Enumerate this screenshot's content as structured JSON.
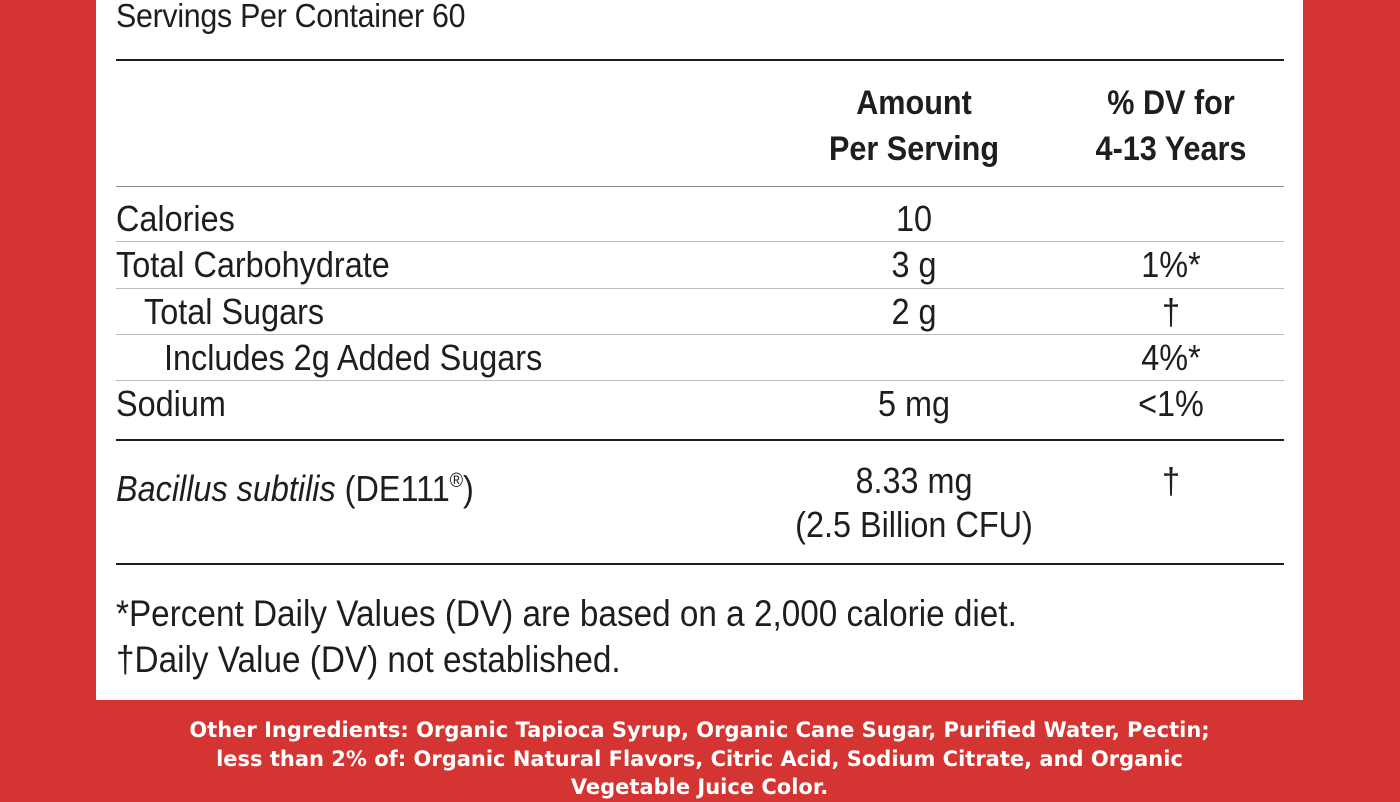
{
  "colors": {
    "background_red": "#d43532",
    "panel_white": "#ffffff",
    "text": "#1e1e1e"
  },
  "servings": "Servings Per Container 60",
  "header": {
    "amount_line1": "Amount",
    "amount_line2": "Per Serving",
    "dv_line1": "% DV for",
    "dv_line2": "4-13 Years"
  },
  "rows": [
    {
      "label": "Calories",
      "amount": "10",
      "dv": ""
    },
    {
      "label": "Total Carbohydrate",
      "amount": "3 g",
      "dv": "1%*"
    },
    {
      "label": "Total Sugars",
      "amount": "2 g",
      "dv": "†"
    },
    {
      "label": "Includes 2g Added Sugars",
      "amount": "",
      "dv": "4%*"
    },
    {
      "label": "Sodium",
      "amount": "5 mg",
      "dv": "<1%"
    }
  ],
  "probiotic": {
    "name": "Bacillus subtilis",
    "strain_open": " (DE111",
    "registered": "®",
    "strain_close": ")",
    "amount_line1": "8.33 mg",
    "amount_line2": "(2.5 Billion CFU)",
    "dv": "†"
  },
  "footnotes": {
    "percent_dv": "*Percent Daily Values (DV) are based on a 2,000 calorie diet.",
    "not_established": "†Daily Value (DV) not established."
  },
  "ingredients": {
    "line1": "Other Ingredients: Organic Tapioca Syrup, Organic Cane Sugar, Purified Water, Pectin;",
    "line2": "less than 2% of: Organic Natural Flavors, Citric Acid, Sodium Citrate, and Organic",
    "line3": "Vegetable Juice Color."
  }
}
